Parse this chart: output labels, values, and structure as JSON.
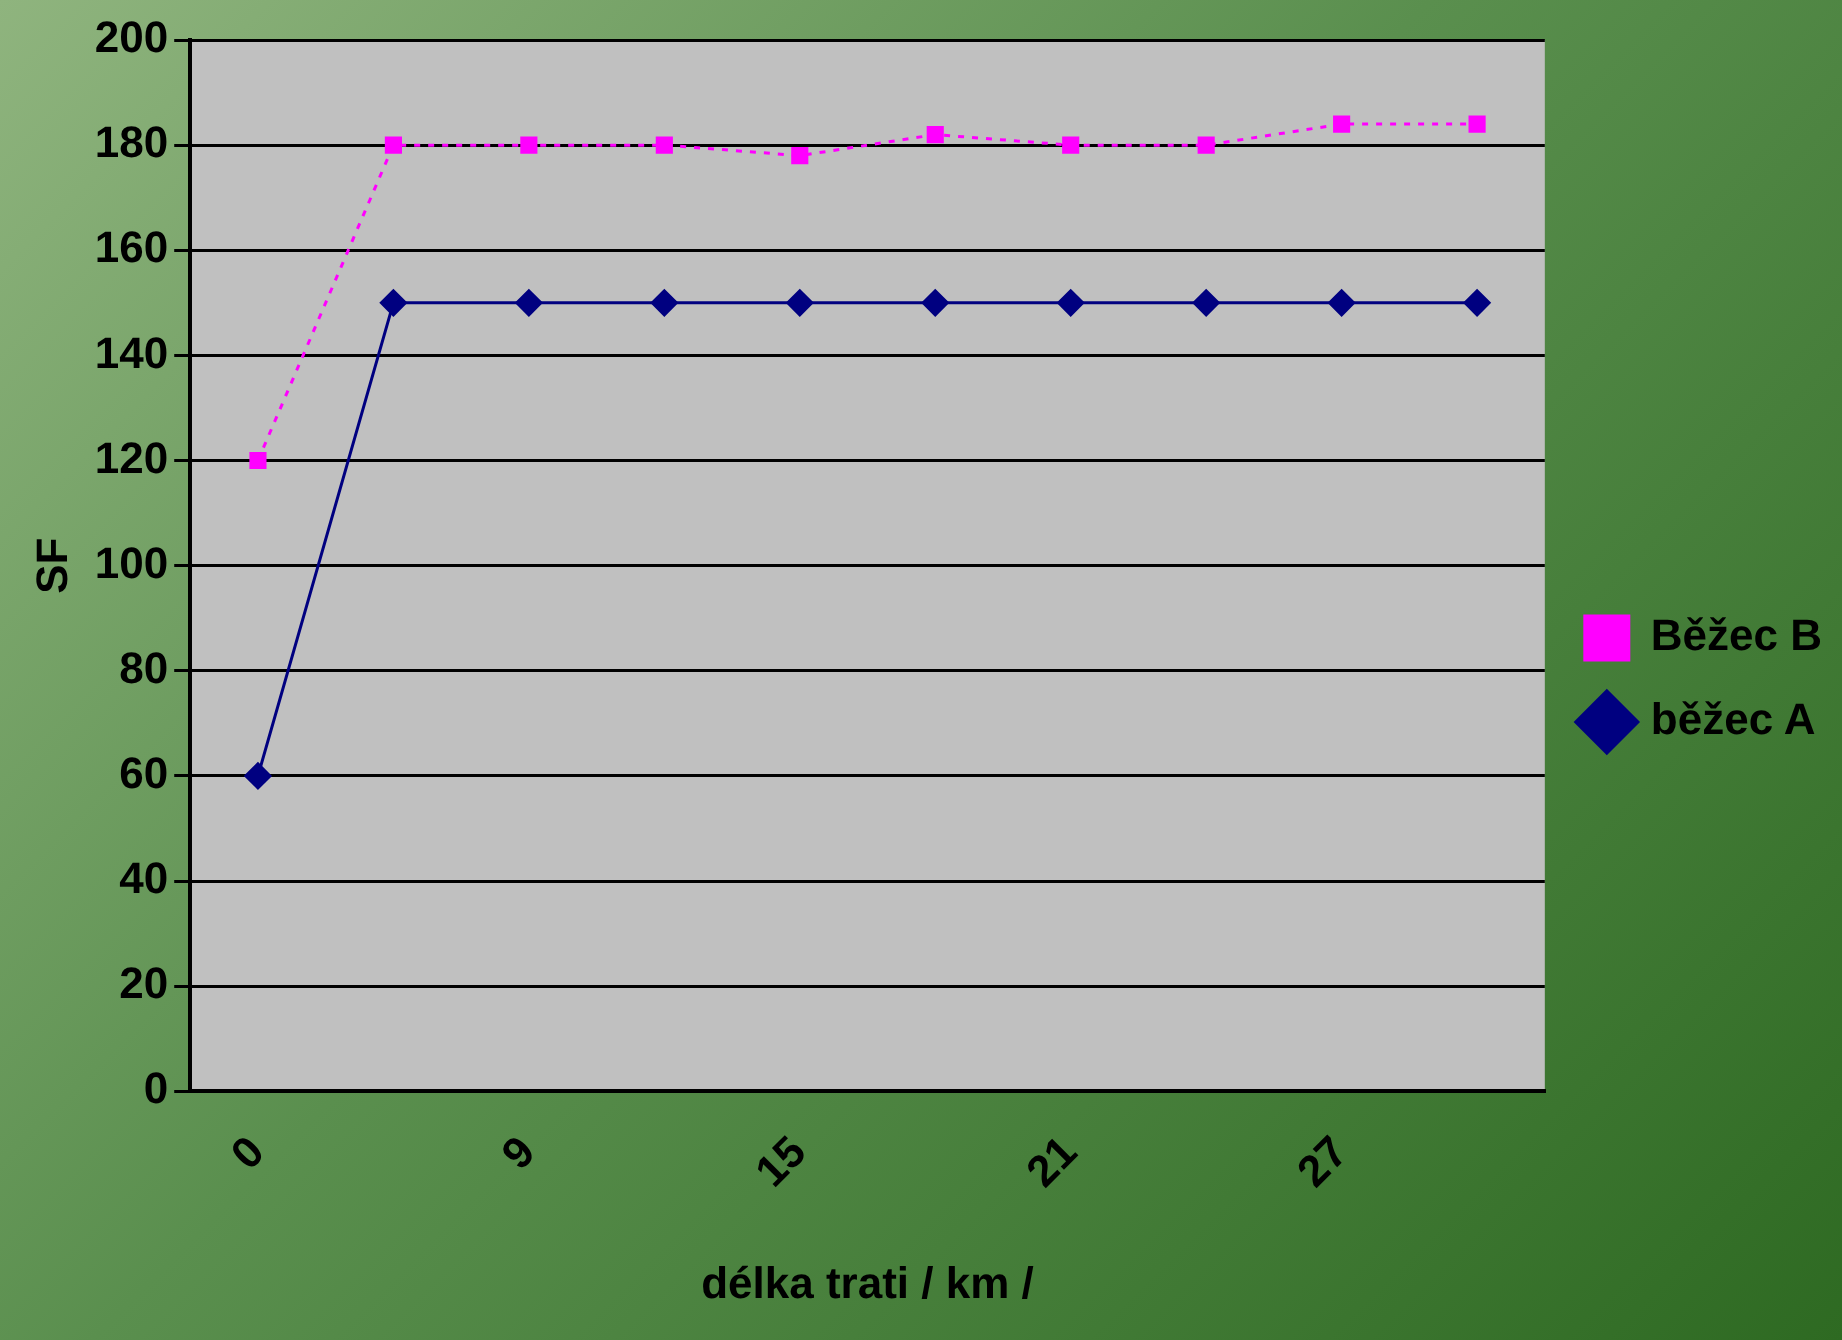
{
  "chart_data": {
    "type": "line",
    "xlabel": "délka trati / km /",
    "ylabel": "SF",
    "categories": [
      "0",
      null,
      "9",
      null,
      "15",
      null,
      "21",
      null,
      "27",
      null
    ],
    "series": [
      {
        "name": "Běžec B",
        "color": "#ff00ff",
        "marker": "square",
        "line_style": "dotted",
        "values": [
          120,
          180,
          180,
          180,
          178,
          182,
          180,
          180,
          184,
          184
        ]
      },
      {
        "name": "běžec A",
        "color": "#000080",
        "marker": "diamond",
        "line_style": "solid",
        "values": [
          60,
          150,
          150,
          150,
          150,
          150,
          150,
          150,
          150,
          150
        ]
      }
    ],
    "ylim": [
      0,
      200
    ],
    "yticks": [
      0,
      20,
      40,
      60,
      80,
      100,
      120,
      140,
      160,
      180,
      200
    ],
    "grid": "y",
    "legend": "right"
  }
}
